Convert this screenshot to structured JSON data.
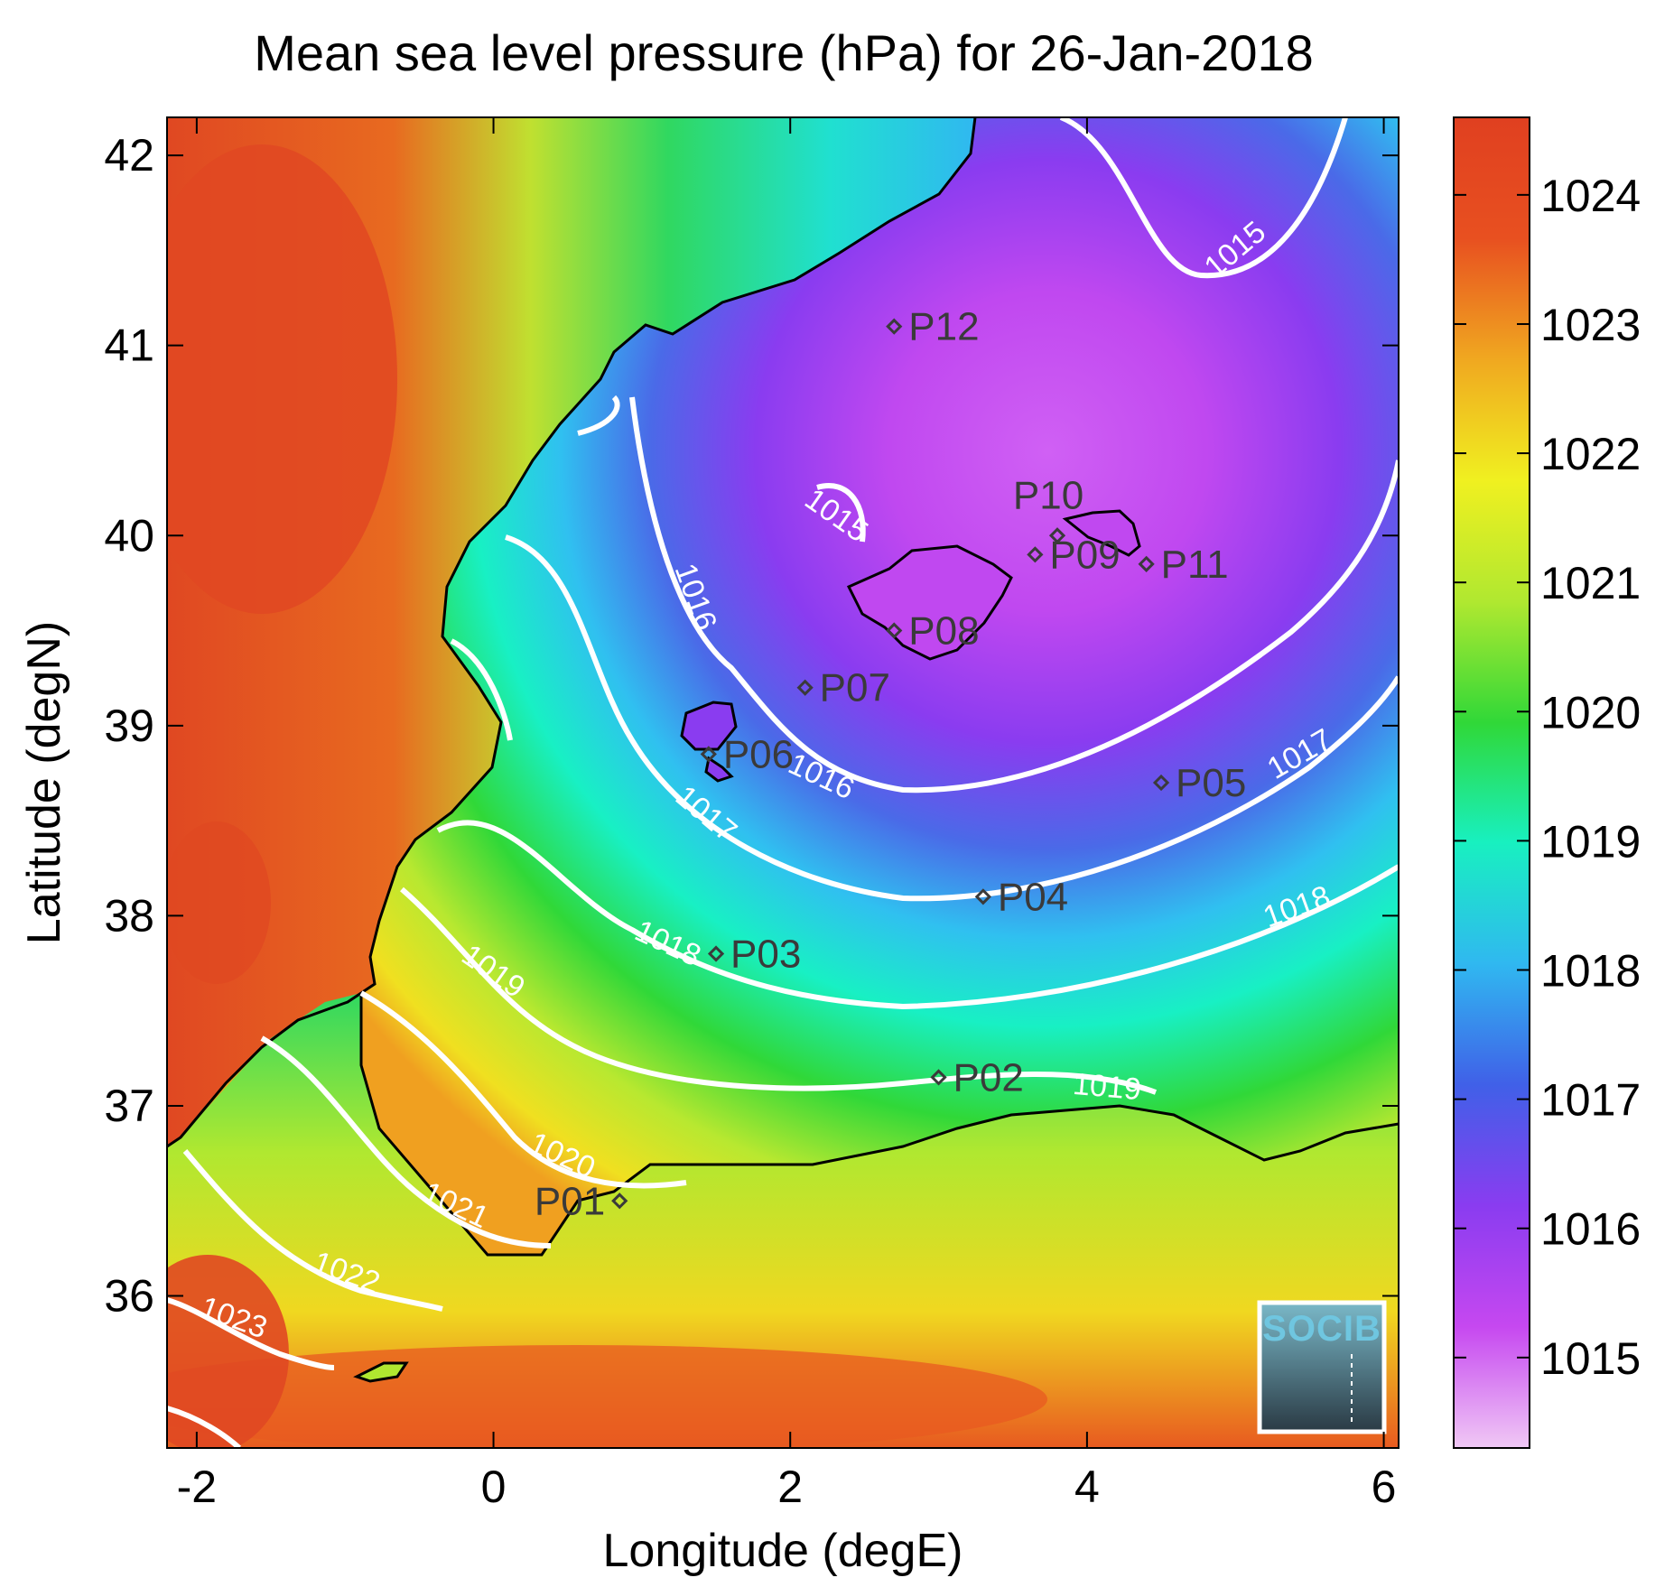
{
  "title": "Mean sea level pressure (hPa) for 26-Jan-2018",
  "xlabel": "Longitude (degE)",
  "ylabel": "Latitude (degN)",
  "x_ticks": [
    "-2",
    "0",
    "2",
    "4",
    "6"
  ],
  "y_ticks": [
    "36",
    "37",
    "38",
    "39",
    "40",
    "41",
    "42"
  ],
  "colorbar_ticks": [
    "1015",
    "1016",
    "1017",
    "1018",
    "1019",
    "1020",
    "1021",
    "1022",
    "1023",
    "1024"
  ],
  "map": {
    "lon_range": [
      -2.2,
      6.1
    ],
    "lat_range": [
      35.2,
      42.2
    ],
    "colorbar_range": [
      1014.3,
      1024.6
    ],
    "colormap_colors": [
      "#f0c8f5",
      "#c648f0",
      "#8a3cf0",
      "#4060e8",
      "#30b8f0",
      "#18f0c0",
      "#30d838",
      "#b0e830",
      "#f0f020",
      "#f0a820",
      "#e85020",
      "#e04020"
    ]
  },
  "stations": [
    {
      "name": "P01",
      "lon": 0.85,
      "lat": 36.5
    },
    {
      "name": "P02",
      "lon": 3.0,
      "lat": 37.15
    },
    {
      "name": "P03",
      "lon": 1.5,
      "lat": 37.8
    },
    {
      "name": "P04",
      "lon": 3.3,
      "lat": 38.1
    },
    {
      "name": "P05",
      "lon": 4.5,
      "lat": 38.7
    },
    {
      "name": "P06",
      "lon": 1.45,
      "lat": 38.85
    },
    {
      "name": "P07",
      "lon": 2.1,
      "lat": 39.2
    },
    {
      "name": "P08",
      "lon": 2.7,
      "lat": 39.5
    },
    {
      "name": "P09",
      "lon": 3.65,
      "lat": 39.9
    },
    {
      "name": "P10",
      "lon": 3.8,
      "lat": 40.0
    },
    {
      "name": "P11",
      "lon": 4.4,
      "lat": 39.85
    },
    {
      "name": "P12",
      "lon": 2.7,
      "lat": 41.1
    }
  ],
  "contour_labels": [
    "1015",
    "1015",
    "1016",
    "1016",
    "1017",
    "1017",
    "1018",
    "1018",
    "1019",
    "1019",
    "1020",
    "1021",
    "1022",
    "1023"
  ],
  "logo": {
    "text": "SOCIB"
  }
}
